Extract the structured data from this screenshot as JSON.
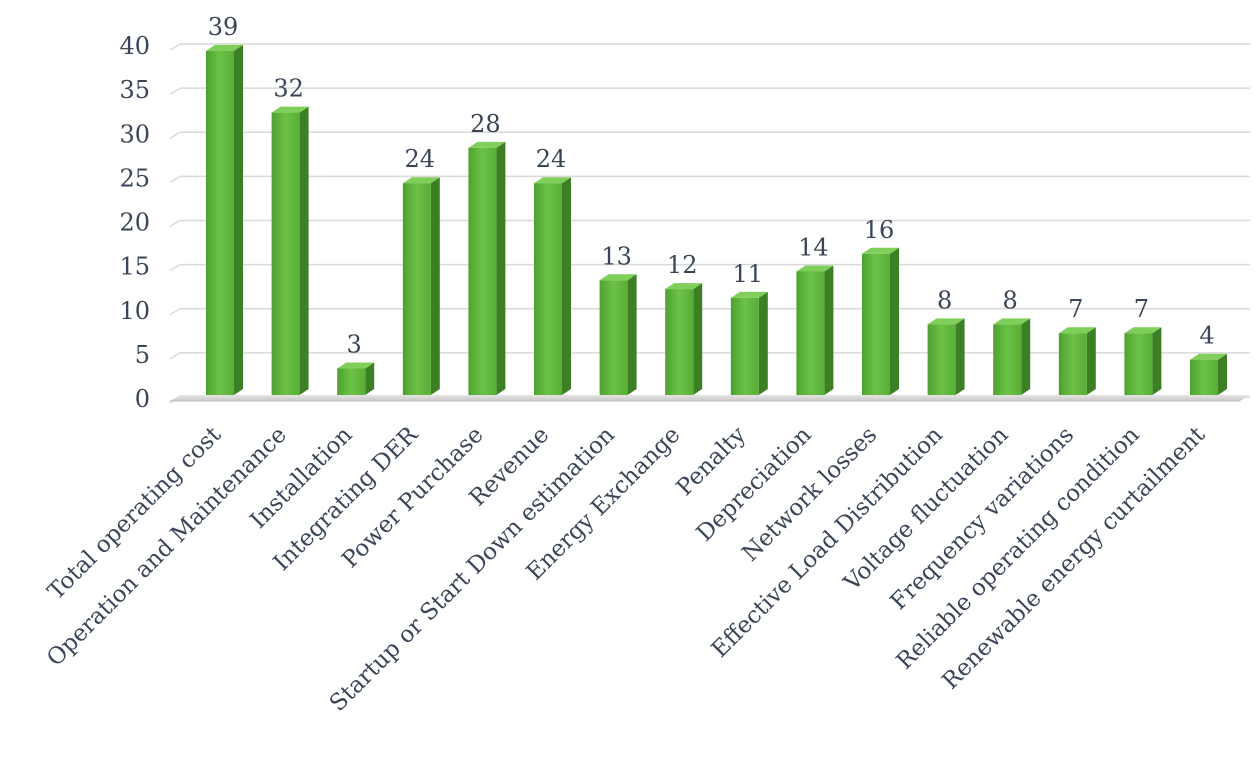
{
  "chart_data": {
    "type": "bar",
    "categories": [
      "Total operating cost",
      "Operation and Maintenance",
      "Installation",
      "Integrating DER",
      "Power Purchase",
      "Revenue",
      "Startup or Start Down estimation",
      "Energy Exchange",
      "Penalty",
      "Depreciation",
      "Network losses",
      "Effective Load Distribution",
      "Voltage fluctuation",
      "Frequency variations",
      "Reliable operating condition",
      "Renewable energy curtailment"
    ],
    "values": [
      39,
      32,
      3,
      24,
      28,
      24,
      13,
      12,
      11,
      14,
      16,
      8,
      8,
      7,
      7,
      4
    ],
    "data_labels": [
      "39",
      "32",
      "3",
      "24",
      "28",
      "24",
      "13",
      "12",
      "11",
      "14",
      "16",
      "8",
      "8",
      "7",
      "7",
      "4"
    ],
    "yticks": [
      "0",
      "5",
      "10",
      "15",
      "20",
      "25",
      "30",
      "35",
      "40"
    ],
    "title": "",
    "xlabel": "",
    "ylabel": "",
    "ylim": [
      0,
      40
    ],
    "grid": true,
    "legend": "none",
    "style": "3d-column",
    "colors": {
      "bar_front": "#5cb33a",
      "bar_side": "#3d7f25",
      "bar_top": "#7fcf5a",
      "grid": "#d9d9d9",
      "text": "#3a4658",
      "floor": "#d0d0d0"
    }
  }
}
